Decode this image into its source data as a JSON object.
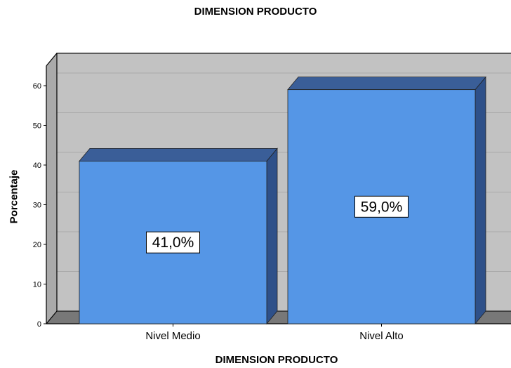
{
  "chart_data": {
    "type": "bar",
    "title": "DIMENSION PRODUCTO",
    "xlabel": "DIMENSION PRODUCTO",
    "ylabel": "Porcentaje",
    "categories": [
      "Nivel Medio",
      "Nivel Alto"
    ],
    "values": [
      41.0,
      59.0
    ],
    "data_labels": [
      "41,0%",
      "59,0%"
    ],
    "yticks": [
      "0",
      "10",
      "20",
      "30",
      "40",
      "50",
      "60"
    ],
    "ylim": [
      0,
      65
    ],
    "grid": true,
    "colors": {
      "bar_front": "#5596E6",
      "bar_top": "#3A5E98",
      "bar_side": "#2E5089",
      "plot_back": "#C2C2C2",
      "plot_left_wall": "#AAAAAA",
      "plot_floor": "#787878",
      "gridline": "#A9A9A9"
    }
  }
}
